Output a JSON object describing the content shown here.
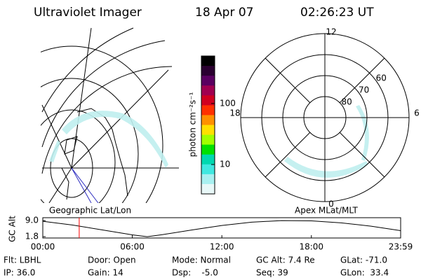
{
  "header": {
    "title": "Ultraviolet Imager",
    "date": "18 Apr 07",
    "time": "02:26:23 UT"
  },
  "map_label": "Geographic Lat/Lon",
  "polar": {
    "label": "Apex MLat/MLT",
    "rlim": [
      90,
      50
    ],
    "rings": [
      80,
      70,
      60
    ],
    "hours": [
      12,
      18,
      6,
      0
    ]
  },
  "colorbar": {
    "label": "photon cm⁻²s⁻¹",
    "log": true,
    "ylim": [
      3.3,
      600
    ],
    "yticks": [
      10,
      100
    ],
    "colors": [
      "#000000",
      "#2a0030",
      "#5a0060",
      "#a00050",
      "#d00020",
      "#ff3000",
      "#ff9000",
      "#ffe000",
      "#a0ff00",
      "#00e000",
      "#00d8b0",
      "#40e8e0",
      "#a8f0f0",
      "#e8f8f8"
    ]
  },
  "chart_data": {
    "type": "line",
    "ylabel": "GC Alt",
    "x": [
      0,
      2,
      4,
      6,
      7,
      8,
      10,
      12,
      14,
      16,
      18,
      20,
      22,
      23.983
    ],
    "values": [
      8.7,
      7.0,
      4.8,
      2.6,
      1.8,
      2.7,
      4.8,
      6.8,
      8.3,
      9.0,
      8.9,
      8.0,
      6.5,
      4.5
    ],
    "color": "#000000",
    "xlim": [
      0,
      23.983
    ],
    "ylim": [
      1.2,
      10.3
    ],
    "xticks": [
      {
        "value": 0,
        "label": "00:00"
      },
      {
        "value": 6,
        "label": "06:00"
      },
      {
        "value": 12,
        "label": "12:00"
      },
      {
        "value": 18,
        "label": "18:00"
      },
      {
        "value": 23.983,
        "label": "23:59"
      }
    ],
    "yticks": [
      {
        "value": 9,
        "label": "9.0"
      },
      {
        "value": 1.8,
        "label": "1.8"
      }
    ],
    "marker_x": 2.44,
    "marker_color": "#ff0000"
  },
  "info": [
    [
      "Flt: LBHL",
      "Door: Open",
      "Mode: Normal",
      "GC Alt: 7.4 Re",
      "GLat: -71.0"
    ],
    [
      "IP: 36.0",
      "Gain: 14",
      "Dsp:    -5.0",
      "Seq: 39",
      "GLon:  33.4"
    ]
  ]
}
